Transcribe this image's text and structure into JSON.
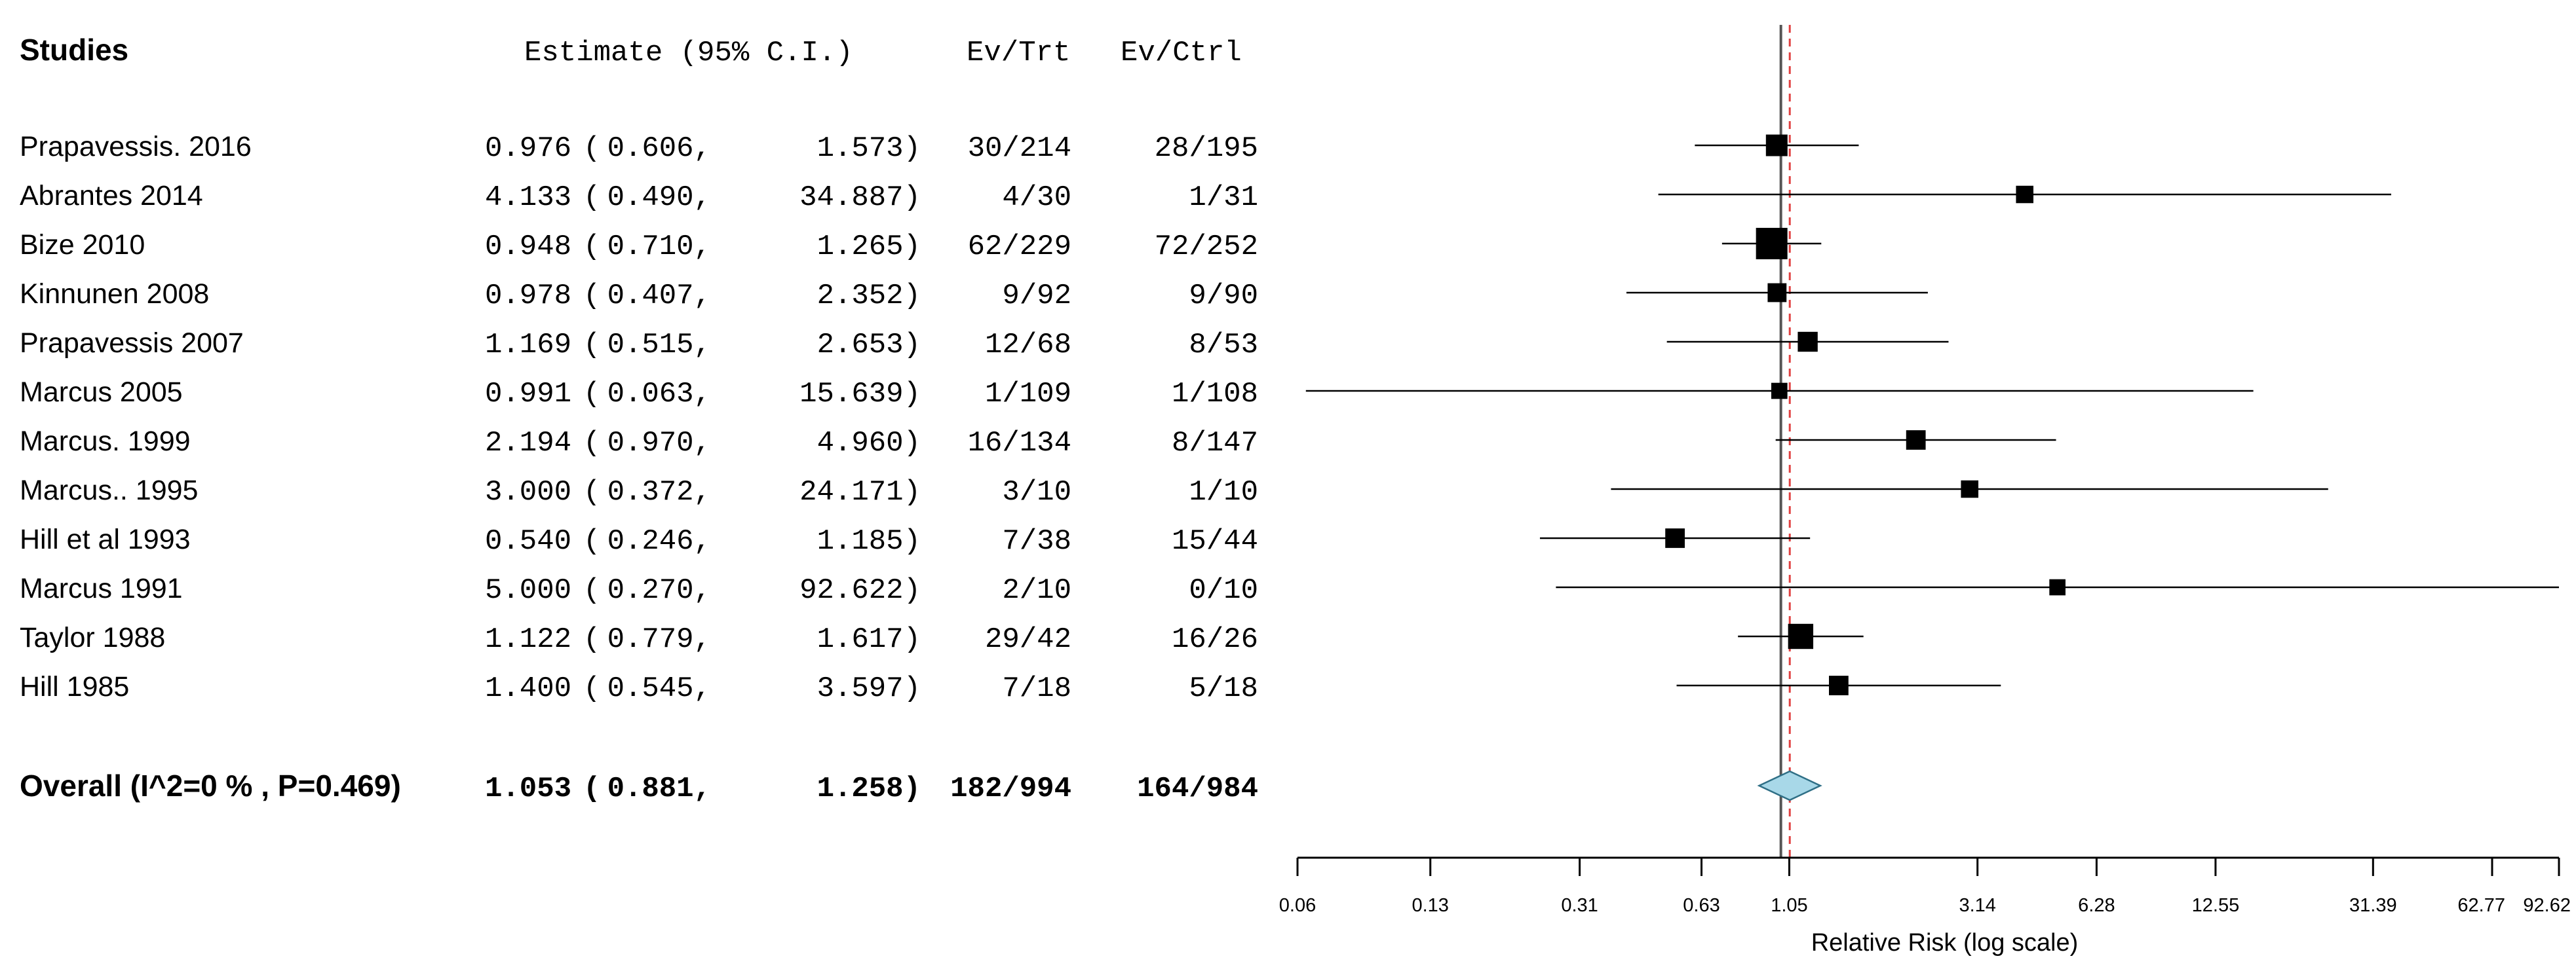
{
  "chart_data": {
    "type": "forest",
    "scale": "log",
    "headers": {
      "studies": "Studies",
      "estimate": "Estimate (95% C.I.)",
      "ev_trt": "Ev/Trt",
      "ev_ctrl": "Ev/Ctrl"
    },
    "studies": [
      {
        "name": "Prapavessis. 2016",
        "estimate": 0.976,
        "lower": 0.606,
        "upper": 1.573,
        "estimate_text": "0.976",
        "lower_text": "0.606",
        "upper_text": "1.573",
        "ev_trt": "30/214",
        "ev_ctrl": "28/195",
        "weight": 0.53
      },
      {
        "name": "Abrantes 2014",
        "estimate": 4.133,
        "lower": 0.49,
        "upper": 34.887,
        "estimate_text": "4.133",
        "lower_text": "0.490",
        "upper_text": "34.887",
        "ev_trt": "4/30",
        "ev_ctrl": "1/31",
        "weight": 0.33
      },
      {
        "name": "Bize 2010",
        "estimate": 0.948,
        "lower": 0.71,
        "upper": 1.265,
        "estimate_text": "0.948",
        "lower_text": "0.710",
        "upper_text": "1.265",
        "ev_trt": "62/229",
        "ev_ctrl": "72/252",
        "weight": 1.0
      },
      {
        "name": "Kinnunen 2008",
        "estimate": 0.978,
        "lower": 0.407,
        "upper": 2.352,
        "estimate_text": "0.978",
        "lower_text": "0.407",
        "upper_text": "2.352",
        "ev_trt": "9/92",
        "ev_ctrl": "9/90",
        "weight": 0.4
      },
      {
        "name": "Prapavessis  2007",
        "estimate": 1.169,
        "lower": 0.515,
        "upper": 2.653,
        "estimate_text": "1.169",
        "lower_text": "0.515",
        "upper_text": "2.653",
        "ev_trt": "12/68",
        "ev_ctrl": "8/53",
        "weight": 0.45
      },
      {
        "name": "Marcus 2005",
        "estimate": 0.991,
        "lower": 0.063,
        "upper": 15.639,
        "estimate_text": "0.991",
        "lower_text": "0.063",
        "upper_text": "15.639",
        "ev_trt": "1/109",
        "ev_ctrl": "1/108",
        "weight": 0.27
      },
      {
        "name": "Marcus. 1999",
        "estimate": 2.194,
        "lower": 0.97,
        "upper": 4.96,
        "estimate_text": "2.194",
        "lower_text": "0.970",
        "upper_text": "4.960",
        "ev_trt": "16/134",
        "ev_ctrl": "8/147",
        "weight": 0.43
      },
      {
        "name": "Marcus.. 1995",
        "estimate": 3.0,
        "lower": 0.372,
        "upper": 24.171,
        "estimate_text": "3.000",
        "lower_text": "0.372",
        "upper_text": "24.171",
        "ev_trt": "3/10",
        "ev_ctrl": "1/10",
        "weight": 0.33
      },
      {
        "name": "Hill et al 1993",
        "estimate": 0.54,
        "lower": 0.246,
        "upper": 1.185,
        "estimate_text": "0.540",
        "lower_text": "0.246",
        "upper_text": "1.185",
        "ev_trt": "7/38",
        "ev_ctrl": "15/44",
        "weight": 0.43
      },
      {
        "name": "Marcus    1991",
        "estimate": 5.0,
        "lower": 0.27,
        "upper": 92.622,
        "estimate_text": "5.000",
        "lower_text": "0.270",
        "upper_text": "92.622",
        "ev_trt": "2/10",
        "ev_ctrl": "0/10",
        "weight": 0.27
      },
      {
        "name": "Taylor       1988",
        "estimate": 1.122,
        "lower": 0.779,
        "upper": 1.617,
        "estimate_text": "1.122",
        "lower_text": "0.779",
        "upper_text": "1.617",
        "ev_trt": "29/42",
        "ev_ctrl": "16/26",
        "weight": 0.7
      },
      {
        "name": "Hill 1985",
        "estimate": 1.4,
        "lower": 0.545,
        "upper": 3.597,
        "estimate_text": "1.400",
        "lower_text": "0.545",
        "upper_text": "3.597",
        "ev_trt": "7/18",
        "ev_ctrl": "5/18",
        "weight": 0.43
      }
    ],
    "overall": {
      "name": "Overall (I^2=0 % , P=0.469)",
      "estimate": 1.053,
      "lower": 0.881,
      "upper": 1.258,
      "estimate_text": "1.053",
      "lower_text": "0.881",
      "upper_text": "1.258",
      "ev_trt": "182/994",
      "ev_ctrl": "164/984"
    },
    "null_value": 1,
    "axis": {
      "ticks": [
        0.06,
        0.13,
        0.31,
        0.63,
        1.05,
        3.14,
        6.28,
        12.55,
        31.39,
        62.77,
        92.62
      ],
      "tick_labels": [
        "0.06",
        "0.13",
        "0.31",
        "0.63",
        "1.05",
        "3.14",
        "6.28",
        "12.55",
        "31.39",
        "62.77",
        "92.62"
      ],
      "range": [
        0.06,
        92.62
      ],
      "label": "Relative Risk (log scale)"
    },
    "colors": {
      "marker": "#000000",
      "diamond_fill": "#a8d8e8",
      "diamond_stroke": "#2f6f86",
      "null_line": "#555555",
      "overall_line": "#e04040"
    }
  }
}
